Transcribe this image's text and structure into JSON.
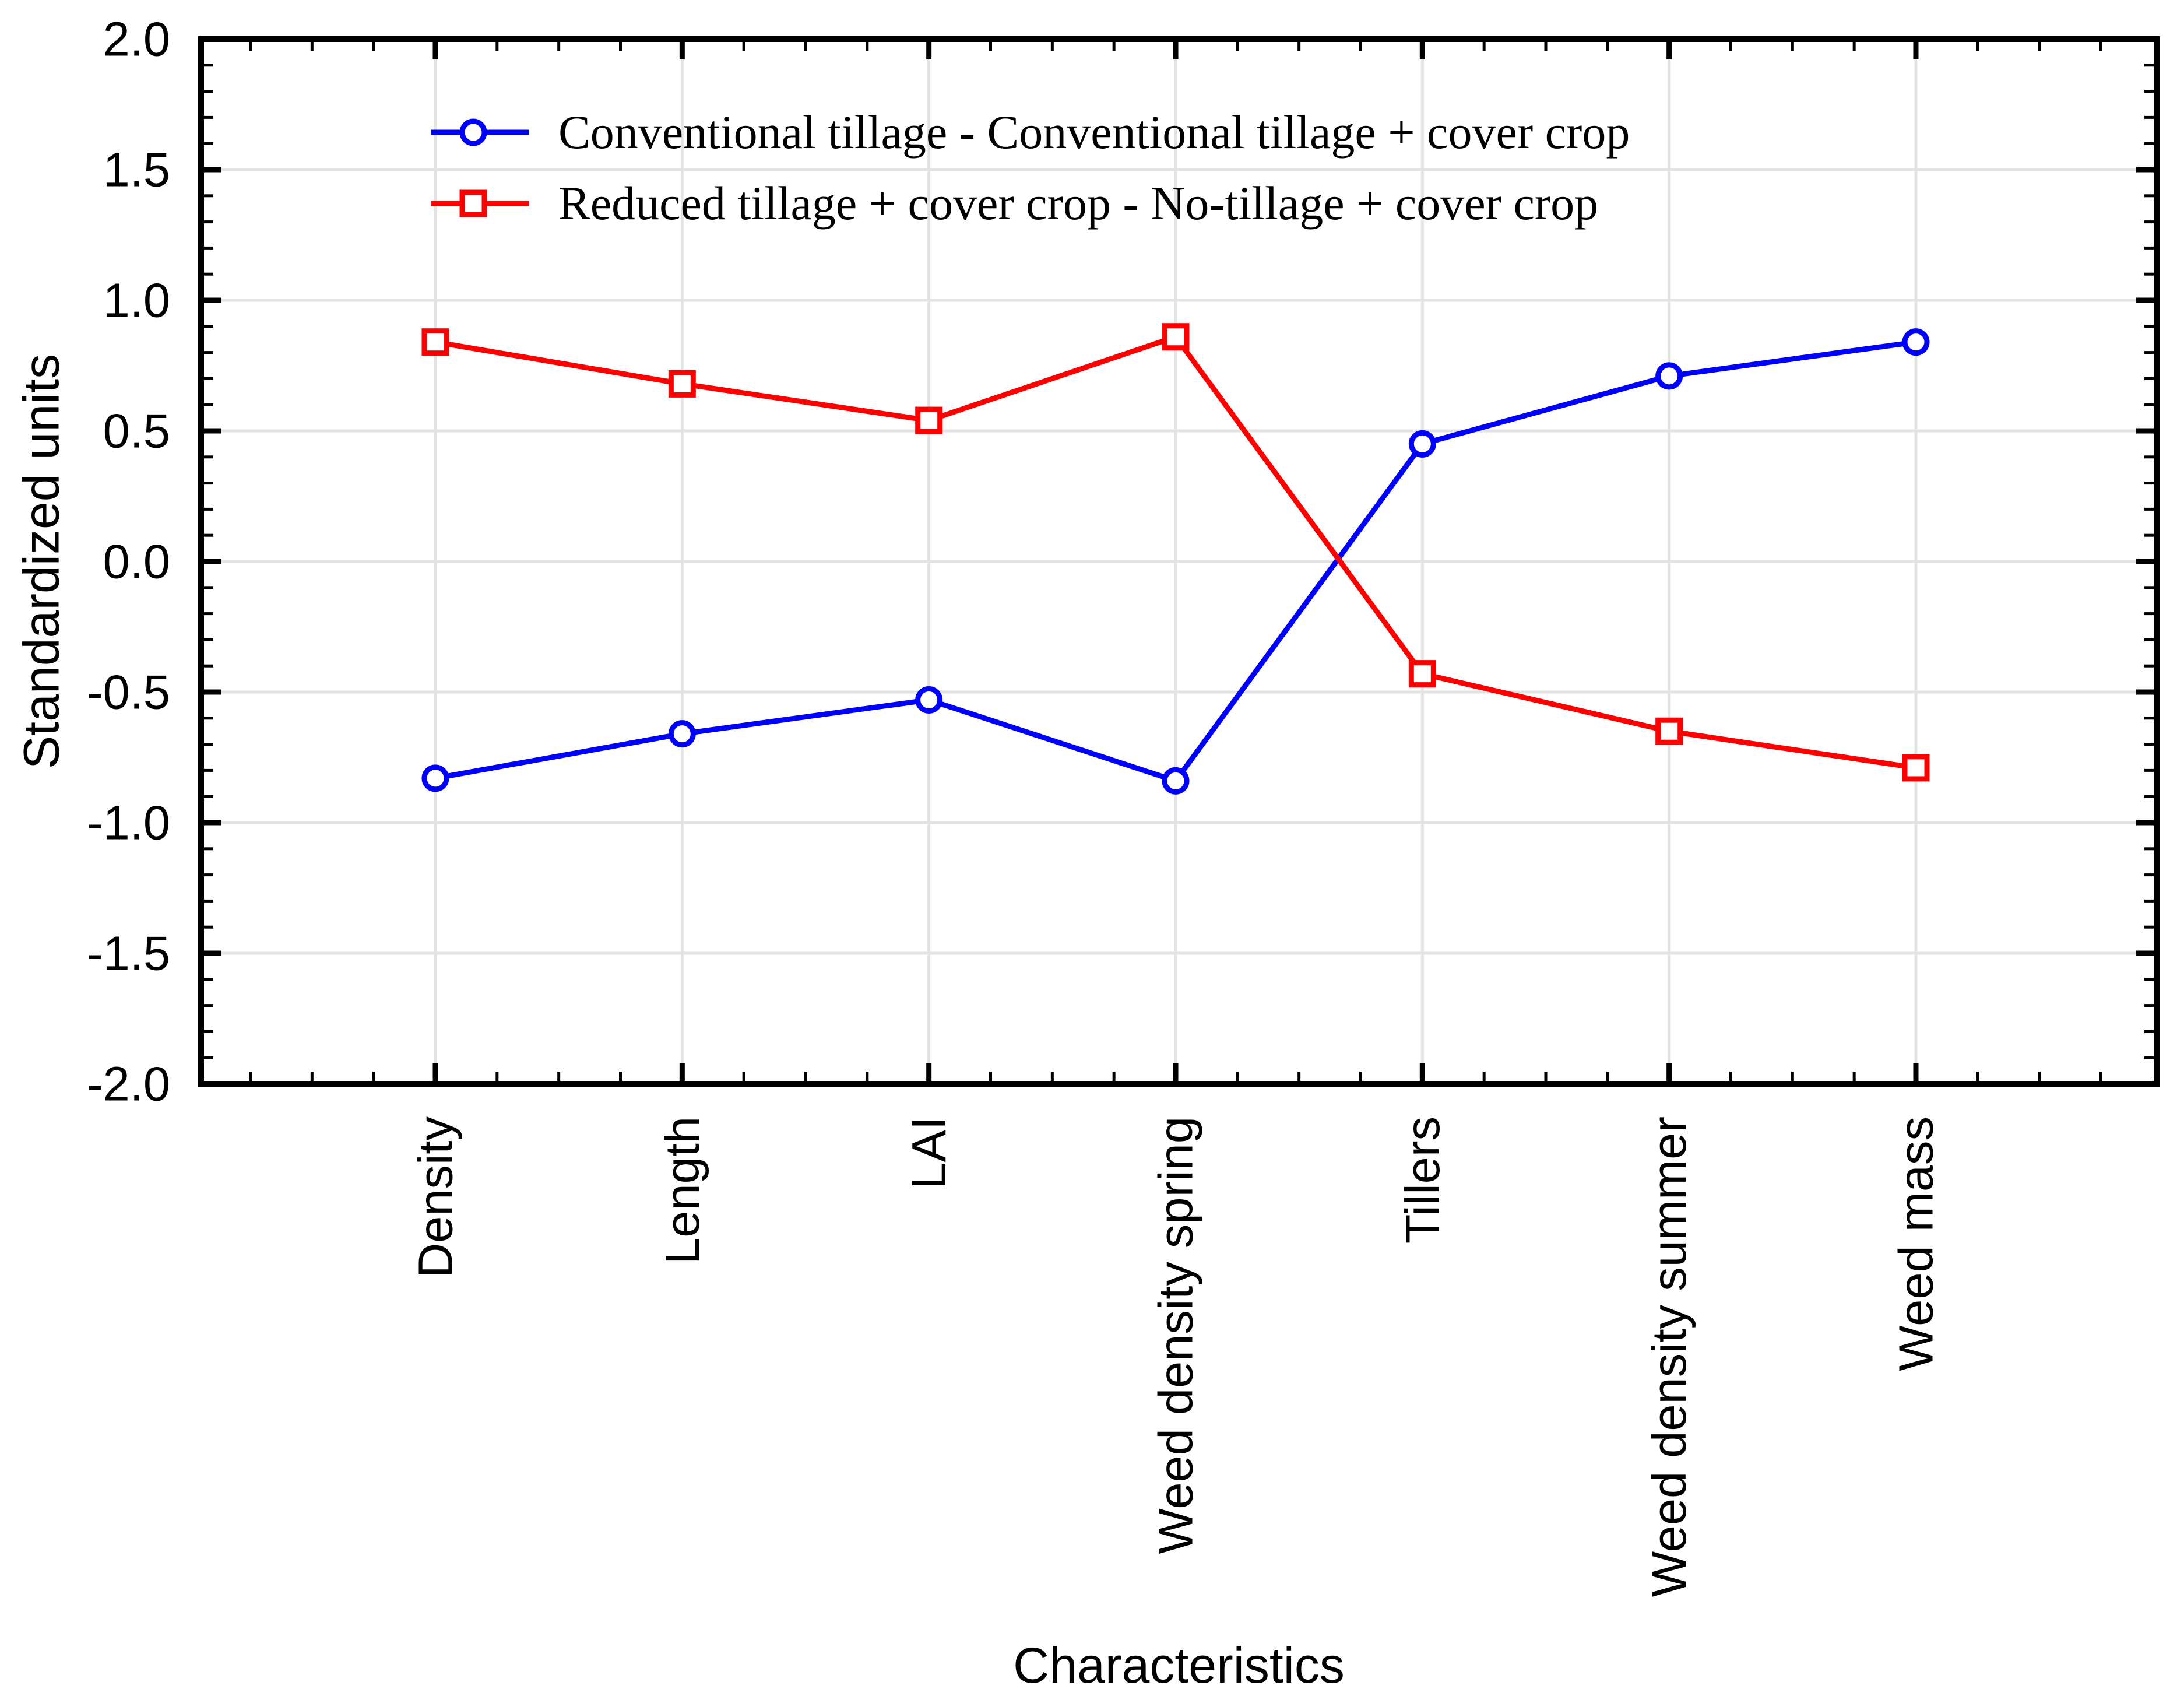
{
  "chart_data": {
    "type": "line",
    "title": "",
    "xlabel": "Characteristics",
    "ylabel": "Standardized units",
    "categories": [
      "Density",
      "Length",
      "LAI",
      "Weed density spring",
      "Tillers",
      "Weed density summer",
      "Weed mass"
    ],
    "series": [
      {
        "name": "Conventional tillage - Conventional tillage + cover crop",
        "color": "#0000ff",
        "marker": "circle",
        "values": [
          -0.83,
          -0.66,
          -0.53,
          -0.84,
          0.45,
          0.71,
          0.84
        ]
      },
      {
        "name": "Reduced tillage + cover crop - No-tillage + cover crop",
        "color": "#ff0000",
        "marker": "square",
        "values": [
          0.84,
          0.68,
          0.54,
          0.86,
          -0.43,
          -0.65,
          -0.79
        ]
      }
    ],
    "ylim": [
      -2.0,
      2.0
    ],
    "ytick_values": [
      2.0,
      1.5,
      1.0,
      0.5,
      0.0,
      -0.5,
      -1.0,
      -1.5,
      -2.0
    ],
    "ytick_labels": [
      "2.0",
      "1.5",
      "1.0",
      "0.5",
      "0.0",
      "-0.5",
      "-1.0",
      "-1.5",
      "-2.0"
    ],
    "y_minor_step": 0.1,
    "grid": true,
    "gridline_color": "#e3e3e3",
    "axis_color": "#000000",
    "legend_position": "top-left-inside"
  }
}
